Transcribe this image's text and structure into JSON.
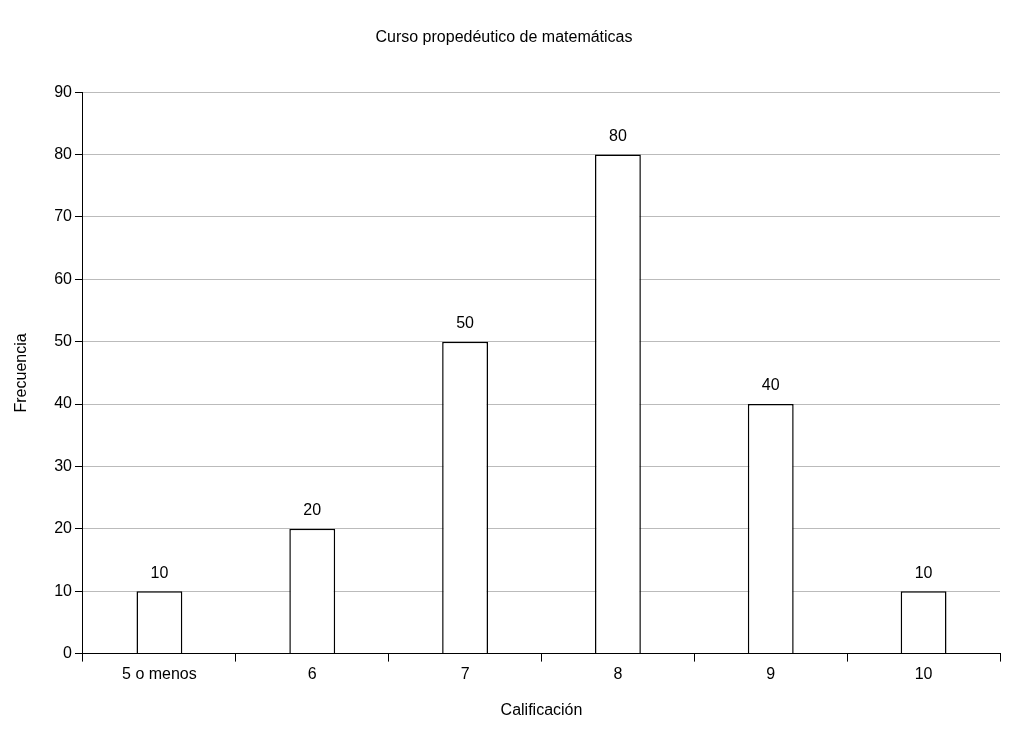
{
  "chart_data": {
    "type": "bar",
    "title": "Curso propedéutico de matemáticas",
    "xlabel": "Calificación",
    "ylabel": "Frecuencia",
    "categories": [
      "5 o menos",
      "6",
      "7",
      "8",
      "9",
      "10"
    ],
    "values": [
      10,
      20,
      50,
      80,
      40,
      10
    ],
    "color": "#ffffff",
    "ylim": [
      0,
      90
    ],
    "yticks": [
      0,
      10,
      20,
      30,
      40,
      50,
      60,
      70,
      80,
      90
    ],
    "grid": "y",
    "data_labels": true,
    "legend": false
  }
}
